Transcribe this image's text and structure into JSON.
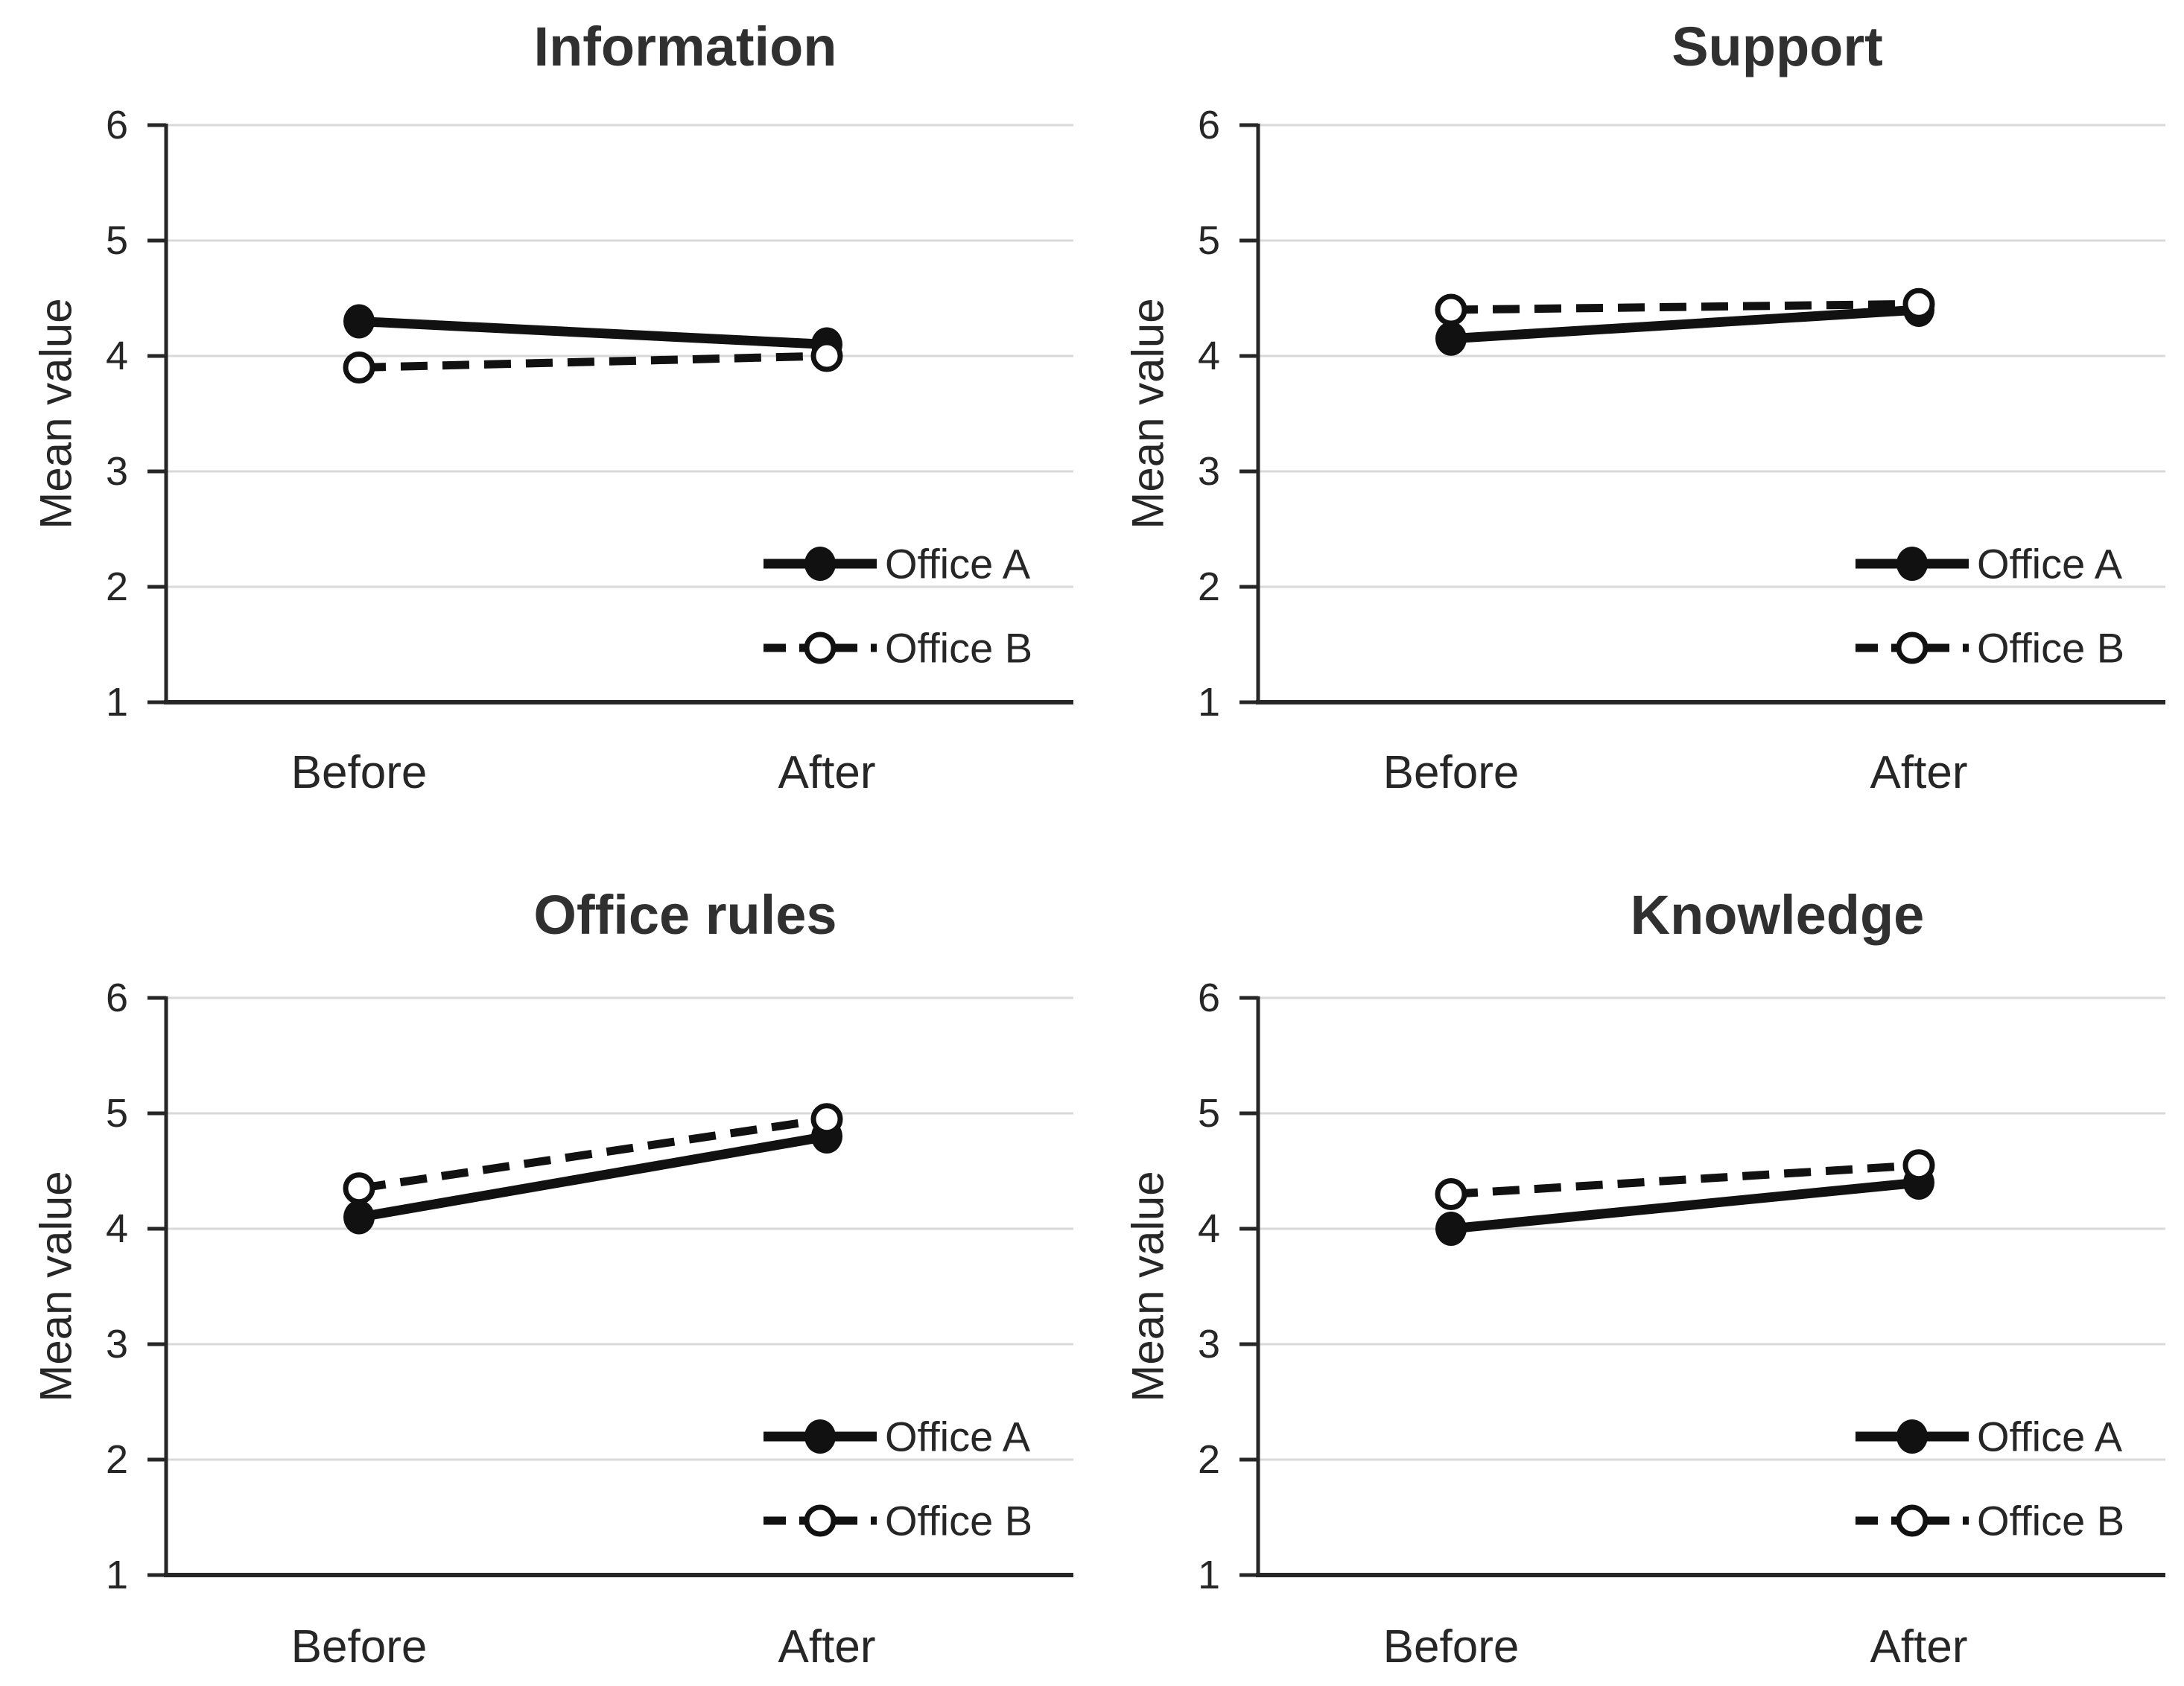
{
  "figure": {
    "background": "#ffffff",
    "colors": {
      "series": "#111111",
      "gridline": "#d9d9d9",
      "axis": "#262626",
      "text": "#262626",
      "title": "#303030",
      "marker_open_fill": "#ffffff"
    }
  },
  "chart_data": [
    {
      "type": "line",
      "title": "Information",
      "ylabel": "Mean value",
      "categories": [
        "Before",
        "After"
      ],
      "yticks": [
        1,
        2,
        3,
        4,
        5,
        6
      ],
      "ylim": [
        1,
        6
      ],
      "grid": true,
      "legend_position": "lower-right",
      "series": [
        {
          "name": "Office A",
          "values": [
            4.3,
            4.1
          ],
          "line": "solid",
          "marker": "filled-circle"
        },
        {
          "name": "Office B",
          "values": [
            3.9,
            4.0
          ],
          "line": "dashed",
          "marker": "open-circle"
        }
      ]
    },
    {
      "type": "line",
      "title": "Support",
      "ylabel": "Mean value",
      "categories": [
        "Before",
        "After"
      ],
      "yticks": [
        1,
        2,
        3,
        4,
        5,
        6
      ],
      "ylim": [
        1,
        6
      ],
      "grid": true,
      "legend_position": "lower-right",
      "series": [
        {
          "name": "Office A",
          "values": [
            4.15,
            4.4
          ],
          "line": "solid",
          "marker": "filled-circle"
        },
        {
          "name": "Office B",
          "values": [
            4.4,
            4.45
          ],
          "line": "dashed",
          "marker": "open-circle"
        }
      ]
    },
    {
      "type": "line",
      "title": "Office rules",
      "ylabel": "Mean value",
      "categories": [
        "Before",
        "After"
      ],
      "yticks": [
        1,
        2,
        3,
        4,
        5,
        6
      ],
      "ylim": [
        1,
        6
      ],
      "grid": true,
      "legend_position": "lower-right",
      "series": [
        {
          "name": "Office A",
          "values": [
            4.1,
            4.8
          ],
          "line": "solid",
          "marker": "filled-circle"
        },
        {
          "name": "Office B",
          "values": [
            4.35,
            4.95
          ],
          "line": "dashed",
          "marker": "open-circle"
        }
      ]
    },
    {
      "type": "line",
      "title": "Knowledge",
      "ylabel": "Mean value",
      "categories": [
        "Before",
        "After"
      ],
      "yticks": [
        1,
        2,
        3,
        4,
        5,
        6
      ],
      "ylim": [
        1,
        6
      ],
      "grid": true,
      "legend_position": "lower-right",
      "series": [
        {
          "name": "Office A",
          "values": [
            4.0,
            4.4
          ],
          "line": "solid",
          "marker": "filled-circle"
        },
        {
          "name": "Office B",
          "values": [
            4.3,
            4.55
          ],
          "line": "dashed",
          "marker": "open-circle"
        }
      ]
    }
  ]
}
